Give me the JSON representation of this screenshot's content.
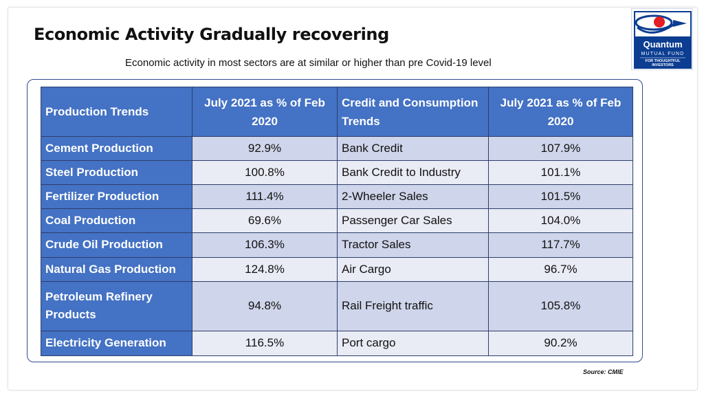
{
  "title": "Economic Activity Gradually recovering",
  "subtitle": "Economic activity in most sectors are  at similar or higher than pre Covid-19 level",
  "logo": {
    "name": "Quantum",
    "line2": "MUTUAL FUND",
    "line3": "FOR THOUGHTFUL",
    "line4": "INVESTORS",
    "colors": {
      "blue": "#0b3d91",
      "red": "#e31e24"
    }
  },
  "table": {
    "headers": [
      "Production Trends",
      "July 2021 as  % of Feb 2020",
      "Credit and Consumption Trends",
      "July 2021 as  % of Feb 2020"
    ],
    "rows": [
      {
        "production": "Cement Production",
        "production_value": "92.9%",
        "credit": "Bank Credit",
        "credit_value": "107.9%"
      },
      {
        "production": "Steel Production",
        "production_value": "100.8%",
        "credit": "Bank Credit to Industry",
        "credit_value": "101.1%"
      },
      {
        "production": "Fertilizer Production",
        "production_value": "111.4%",
        "credit": "2-Wheeler Sales",
        "credit_value": "101.5%"
      },
      {
        "production": "Coal  Production",
        "production_value": "69.6%",
        "credit": "Passenger Car Sales",
        "credit_value": "104.0%"
      },
      {
        "production": "Crude Oil  Production",
        "production_value": "106.3%",
        "credit": "Tractor Sales",
        "credit_value": "117.7%"
      },
      {
        "production": "Natural Gas Production",
        "production_value": "124.8%",
        "credit": "Air Cargo",
        "credit_value": "96.7%"
      },
      {
        "production": "Petroleum Refinery Products",
        "production_value": "94.8%",
        "credit": "Rail Freight traffic",
        "credit_value": "105.8%"
      },
      {
        "production": "Electricity Generation",
        "production_value": "116.5%",
        "credit": "Port cargo",
        "credit_value": "90.2%"
      }
    ]
  },
  "source": "Source: CMIE",
  "colors": {
    "header_blue": "#4472c4",
    "row_dark": "#cfd5ea",
    "row_light": "#e9ebf5",
    "border": "#2c3e6b"
  }
}
